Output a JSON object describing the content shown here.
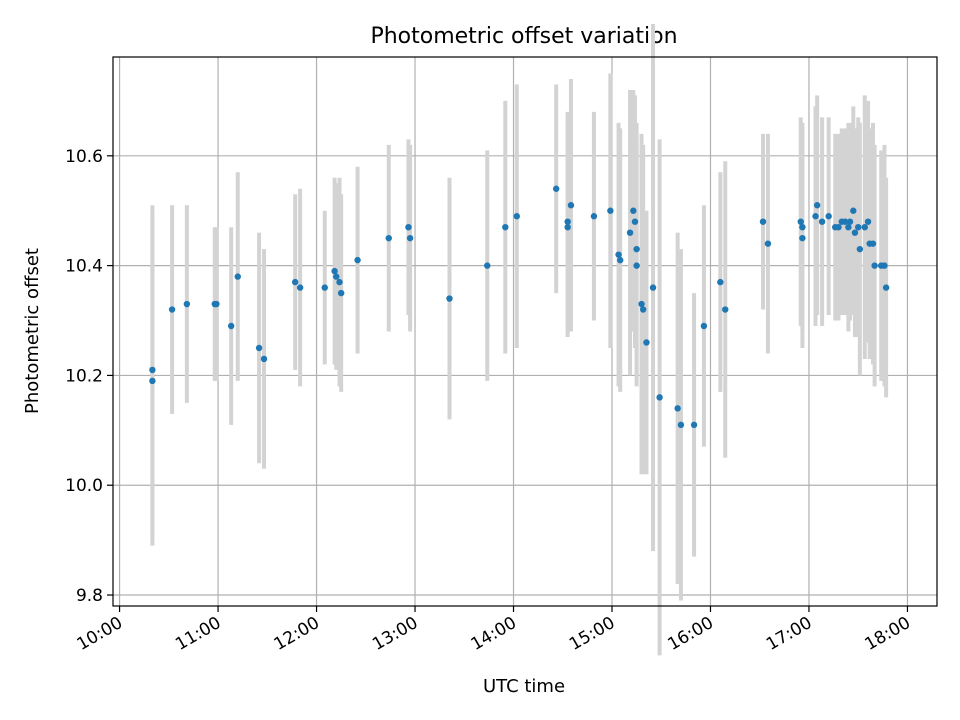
{
  "chart_data": {
    "type": "scatter",
    "title": "Photometric offset variation",
    "xlabel": "UTC time",
    "ylabel": "Photometric offset",
    "x_tick_labels": [
      "10:00",
      "11:00",
      "12:00",
      "13:00",
      "14:00",
      "15:00",
      "16:00",
      "17:00",
      "18:00"
    ],
    "y_ticks": [
      9.8,
      10.0,
      10.2,
      10.4,
      10.6
    ],
    "xlim": [
      "09:56",
      "18:18"
    ],
    "ylim": [
      9.78,
      10.78
    ],
    "grid": true,
    "colors": {
      "points": "#1f77b4",
      "errorbars": "#d3d3d3"
    },
    "series": [
      {
        "time": [
          "10:20",
          "10:20",
          "10:32",
          "10:41",
          "10:58",
          "10:59",
          "11:08",
          "11:12",
          "11:25",
          "11:28",
          "11:47",
          "11:50",
          "12:05",
          "12:11",
          "12:12",
          "12:14",
          "12:15",
          "12:25",
          "12:44",
          "12:56",
          "12:57",
          "13:21",
          "13:44",
          "13:55",
          "14:02",
          "14:26",
          "14:33",
          "14:33",
          "14:35",
          "14:49",
          "14:59",
          "15:04",
          "15:05",
          "15:11",
          "15:13",
          "15:14",
          "15:15",
          "15:15",
          "15:18",
          "15:19",
          "15:21",
          "15:25",
          "15:29",
          "15:40",
          "15:42",
          "15:50",
          "15:56",
          "16:06",
          "16:09",
          "16:32",
          "16:35",
          "16:55",
          "16:56",
          "16:56",
          "17:04",
          "17:05",
          "17:08",
          "17:12",
          "17:16",
          "17:18",
          "17:20",
          "17:22",
          "17:24",
          "17:25",
          "17:27",
          "17:28",
          "17:30",
          "17:31",
          "17:34",
          "17:36",
          "17:37",
          "17:39",
          "17:40",
          "17:44",
          "17:46",
          "17:47"
        ],
        "value": [
          10.21,
          10.19,
          10.32,
          10.33,
          10.33,
          10.33,
          10.29,
          10.38,
          10.25,
          10.23,
          10.37,
          10.36,
          10.36,
          10.39,
          10.38,
          10.37,
          10.35,
          10.41,
          10.45,
          10.47,
          10.45,
          10.34,
          10.4,
          10.47,
          10.49,
          10.54,
          10.48,
          10.47,
          10.51,
          10.49,
          10.5,
          10.42,
          10.41,
          10.46,
          10.5,
          10.48,
          10.43,
          10.4,
          10.33,
          10.32,
          10.26,
          10.36,
          10.16,
          10.14,
          10.11,
          10.11,
          10.29,
          10.37,
          10.32,
          10.48,
          10.44,
          10.48,
          10.47,
          10.45,
          10.49,
          10.51,
          10.48,
          10.49,
          10.47,
          10.47,
          10.48,
          10.48,
          10.47,
          10.48,
          10.5,
          10.46,
          10.47,
          10.43,
          10.47,
          10.48,
          10.44,
          10.44,
          10.4,
          10.4,
          10.4,
          10.36
        ],
        "error": [
          0.3,
          0.3,
          0.19,
          0.18,
          0.14,
          0.14,
          0.18,
          0.19,
          0.21,
          0.2,
          0.16,
          0.18,
          0.14,
          0.17,
          0.17,
          0.19,
          0.18,
          0.17,
          0.17,
          0.16,
          0.17,
          0.22,
          0.21,
          0.23,
          0.24,
          0.19,
          0.2,
          0.2,
          0.23,
          0.19,
          0.25,
          0.24,
          0.24,
          0.26,
          0.22,
          0.23,
          0.23,
          0.22,
          0.31,
          0.3,
          0.24,
          0.48,
          0.47,
          0.32,
          0.32,
          0.24,
          0.22,
          0.2,
          0.27,
          0.16,
          0.2,
          0.19,
          0.19,
          0.2,
          0.2,
          0.2,
          0.19,
          0.18,
          0.17,
          0.17,
          0.17,
          0.17,
          0.19,
          0.18,
          0.19,
          0.19,
          0.2,
          0.23,
          0.24,
          0.22,
          0.21,
          0.22,
          0.22,
          0.21,
          0.22,
          0.2
        ]
      }
    ]
  }
}
